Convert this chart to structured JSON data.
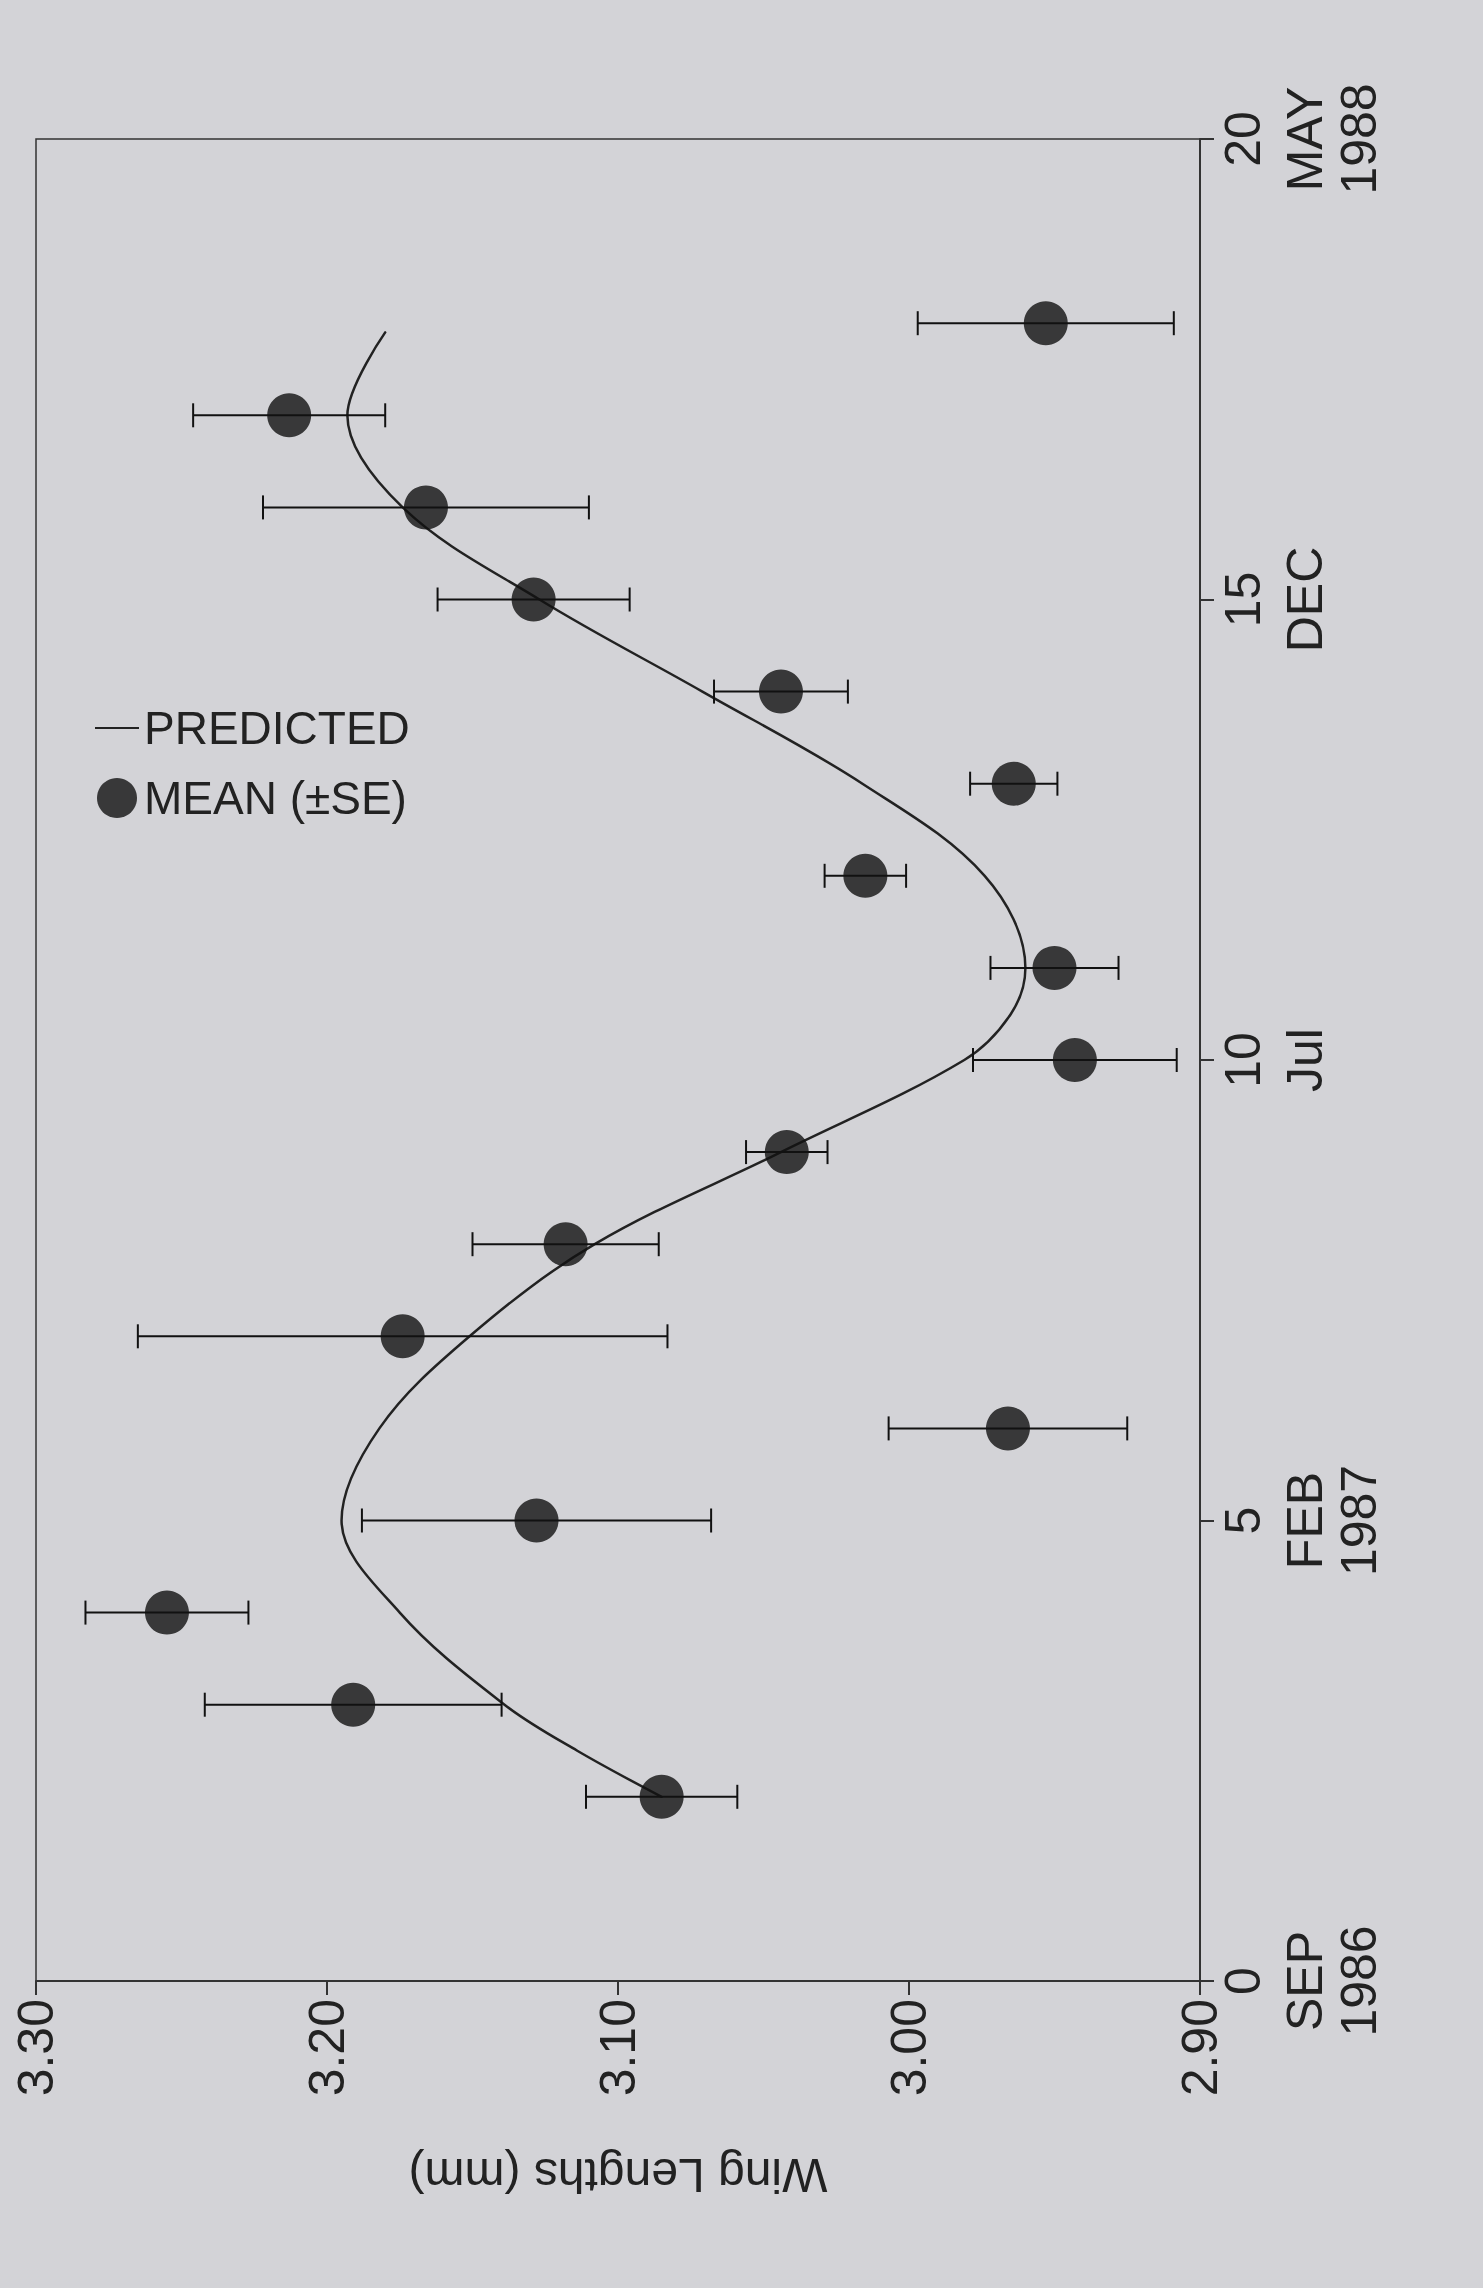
{
  "chart_data": {
    "type": "scatter",
    "xlabel": "Wing Lengths (mm)",
    "xlim": [
      3.3,
      2.9
    ],
    "xticks": [
      {
        "value": 3.3,
        "label": "3.30"
      },
      {
        "value": 3.2,
        "label": "3.20"
      },
      {
        "value": 3.1,
        "label": "3.10"
      },
      {
        "value": 3.0,
        "label": "3.00"
      },
      {
        "value": 2.9,
        "label": "2.90"
      }
    ],
    "ylim": [
      0,
      20
    ],
    "yticks": [
      0,
      5,
      10,
      15,
      20
    ],
    "annotations": [
      "SEP\n1986",
      "FEB\n1987",
      "Jul",
      "DEC",
      "MAY\n1988"
    ],
    "grid": false,
    "legend": "top left",
    "marker": "circle",
    "series": [
      {
        "name": "PREDICTED",
        "type": "line",
        "marker": "none",
        "color": "#222222",
        "x": [
          3.085,
          3.114,
          3.139,
          3.175,
          3.195,
          3.182,
          3.151,
          3.108,
          3.044,
          2.981,
          2.965,
          2.96,
          2.974,
          3.016,
          3.071,
          3.127,
          3.174,
          3.193,
          3.18
        ],
        "values": [
          2,
          2.5,
          3,
          4,
          5,
          6,
          7,
          8,
          9,
          10,
          10.5,
          11,
          12,
          13,
          14,
          15,
          16,
          17,
          17.9
        ]
      },
      {
        "name": "MEAN (±SE)",
        "color": "#111111",
        "x": [
          3.085,
          3.191,
          3.255,
          3.128,
          2.966,
          3.174,
          3.118,
          3.042,
          2.943,
          2.95,
          3.015,
          2.964,
          3.044,
          3.129,
          3.166,
          3.213,
          2.953
        ],
        "values": [
          2,
          3,
          4,
          5,
          6,
          7,
          8,
          9,
          10,
          11,
          12,
          13,
          14,
          15,
          16,
          17,
          18
        ],
        "xerrors": [
          0.026,
          0.051,
          0.028,
          0.06,
          0.041,
          0.091,
          0.032,
          0.014,
          0.035,
          0.022,
          0.014,
          0.015,
          0.023,
          0.033,
          0.056,
          0.033,
          0.044
        ]
      }
    ]
  }
}
